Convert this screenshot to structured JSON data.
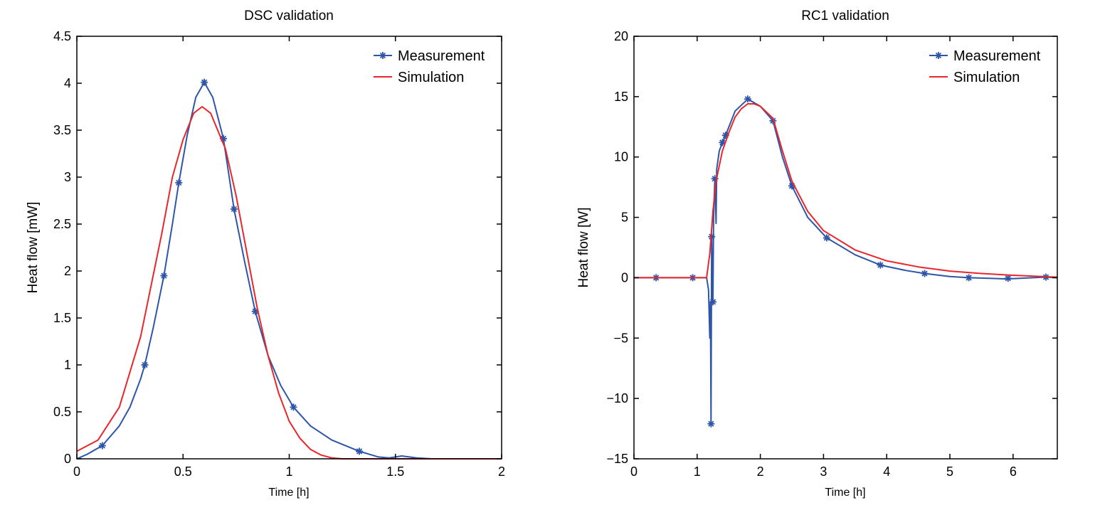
{
  "colors": {
    "measurement": "#2d55a8",
    "simulation": "#e8262b",
    "axis": "#000000"
  },
  "chart_data": [
    {
      "type": "line",
      "title": "DSC validation",
      "xlabel": "Time [h]",
      "ylabel": "Heat flow [mW]",
      "xlim": [
        0,
        2
      ],
      "ylim": [
        0,
        4.5
      ],
      "xticks": [
        "0",
        "0.5",
        "1",
        "1.5",
        "2"
      ],
      "xtick_values": [
        0,
        0.5,
        1,
        1.5,
        2
      ],
      "yticks": [
        "0",
        "0.5",
        "1",
        "1.5",
        "2",
        "2.5",
        "3",
        "3.5",
        "4",
        "4.5"
      ],
      "ytick_values": [
        0,
        0.5,
        1,
        1.5,
        2,
        2.5,
        3,
        3.5,
        4,
        4.5
      ],
      "grid": false,
      "legend": "top-right",
      "series": [
        {
          "name": "Measurement",
          "marker": "asterisk",
          "x": [
            0,
            0.05,
            0.12,
            0.2,
            0.25,
            0.3,
            0.32,
            0.36,
            0.41,
            0.45,
            0.48,
            0.52,
            0.56,
            0.6,
            0.64,
            0.69,
            0.74,
            0.79,
            0.84,
            0.9,
            0.96,
            1.02,
            1.1,
            1.2,
            1.33,
            1.42,
            1.47,
            1.53,
            1.6,
            1.67
          ],
          "y": [
            0,
            0.05,
            0.14,
            0.35,
            0.55,
            0.85,
            1.0,
            1.4,
            1.95,
            2.5,
            2.94,
            3.45,
            3.85,
            4.01,
            3.85,
            3.41,
            2.66,
            2.1,
            1.57,
            1.1,
            0.78,
            0.55,
            0.35,
            0.2,
            0.08,
            0.02,
            0.01,
            0.03,
            0.01,
            0
          ],
          "markers_x": [
            0.12,
            0.32,
            0.41,
            0.48,
            0.6,
            0.69,
            0.74,
            0.84,
            1.02,
            1.33
          ],
          "markers_y": [
            0.14,
            1.0,
            1.95,
            2.94,
            4.01,
            3.41,
            2.66,
            1.57,
            0.55,
            0.08
          ]
        },
        {
          "name": "Simulation",
          "x": [
            0,
            0.1,
            0.2,
            0.3,
            0.4,
            0.45,
            0.5,
            0.55,
            0.59,
            0.63,
            0.7,
            0.75,
            0.8,
            0.85,
            0.9,
            0.95,
            1.0,
            1.05,
            1.1,
            1.15,
            1.2,
            1.25,
            2
          ],
          "y": [
            0.08,
            0.2,
            0.55,
            1.3,
            2.4,
            3.0,
            3.4,
            3.68,
            3.75,
            3.68,
            3.3,
            2.8,
            2.2,
            1.6,
            1.1,
            0.7,
            0.4,
            0.22,
            0.1,
            0.04,
            0.01,
            0,
            0
          ]
        }
      ]
    },
    {
      "type": "line",
      "title": "RC1 validation",
      "xlabel": "Time [h]",
      "ylabel": "Heat flow [W]",
      "xlim": [
        0,
        6.7
      ],
      "ylim": [
        -15,
        20
      ],
      "xticks": [
        "0",
        "1",
        "2",
        "3",
        "4",
        "5",
        "6"
      ],
      "xtick_values": [
        0,
        1,
        2,
        3,
        4,
        5,
        6
      ],
      "yticks": [
        "−15",
        "−10",
        "−5",
        "0",
        "5",
        "10",
        "15",
        "20"
      ],
      "ytick_values": [
        -15,
        -10,
        -5,
        0,
        5,
        10,
        15,
        20
      ],
      "grid": false,
      "legend": "top-right",
      "series": [
        {
          "name": "Measurement",
          "marker": "asterisk",
          "x": [
            0,
            1.15,
            1.18,
            1.2,
            1.21,
            1.22,
            1.23,
            1.24,
            1.25,
            1.26,
            1.28,
            1.3,
            1.31,
            1.35,
            1.4,
            1.45,
            1.6,
            1.8,
            2.0,
            2.2,
            2.35,
            2.5,
            2.75,
            3.05,
            3.5,
            3.9,
            4.3,
            4.6,
            5.0,
            5.3,
            5.9,
            6.5,
            6.7
          ],
          "y": [
            0,
            0,
            -1,
            -5,
            -2,
            -12.1,
            3.4,
            0,
            -2,
            5,
            8.2,
            4.5,
            9,
            10.5,
            11.2,
            11.8,
            13.8,
            14.8,
            14.2,
            13,
            10,
            7.6,
            5,
            3.3,
            1.9,
            1.05,
            0.6,
            0.35,
            0.1,
            0,
            -0.1,
            0.05,
            0
          ],
          "markers_x": [
            0.35,
            0.93,
            1.22,
            1.23,
            1.25,
            1.28,
            1.4,
            1.45,
            1.8,
            2.2,
            2.5,
            3.05,
            3.9,
            4.6,
            5.3,
            5.92,
            6.52
          ],
          "markers_y": [
            0,
            0,
            -12.1,
            3.4,
            -2,
            8.2,
            11.2,
            11.8,
            14.8,
            13,
            7.6,
            3.3,
            1.05,
            0.35,
            0,
            -0.05,
            0.05
          ]
        },
        {
          "name": "Simulation",
          "x": [
            0,
            1.15,
            1.2,
            1.25,
            1.3,
            1.4,
            1.5,
            1.6,
            1.7,
            1.8,
            1.9,
            2.0,
            2.2,
            2.35,
            2.5,
            2.75,
            3.0,
            3.5,
            4.0,
            4.5,
            5.0,
            5.5,
            6.0,
            6.7
          ],
          "y": [
            0,
            0,
            2,
            5.5,
            8,
            10.5,
            12,
            13.3,
            14,
            14.4,
            14.4,
            14.2,
            13.2,
            10.5,
            8,
            5.5,
            3.9,
            2.3,
            1.4,
            0.9,
            0.55,
            0.35,
            0.2,
            0.05
          ]
        }
      ]
    }
  ]
}
